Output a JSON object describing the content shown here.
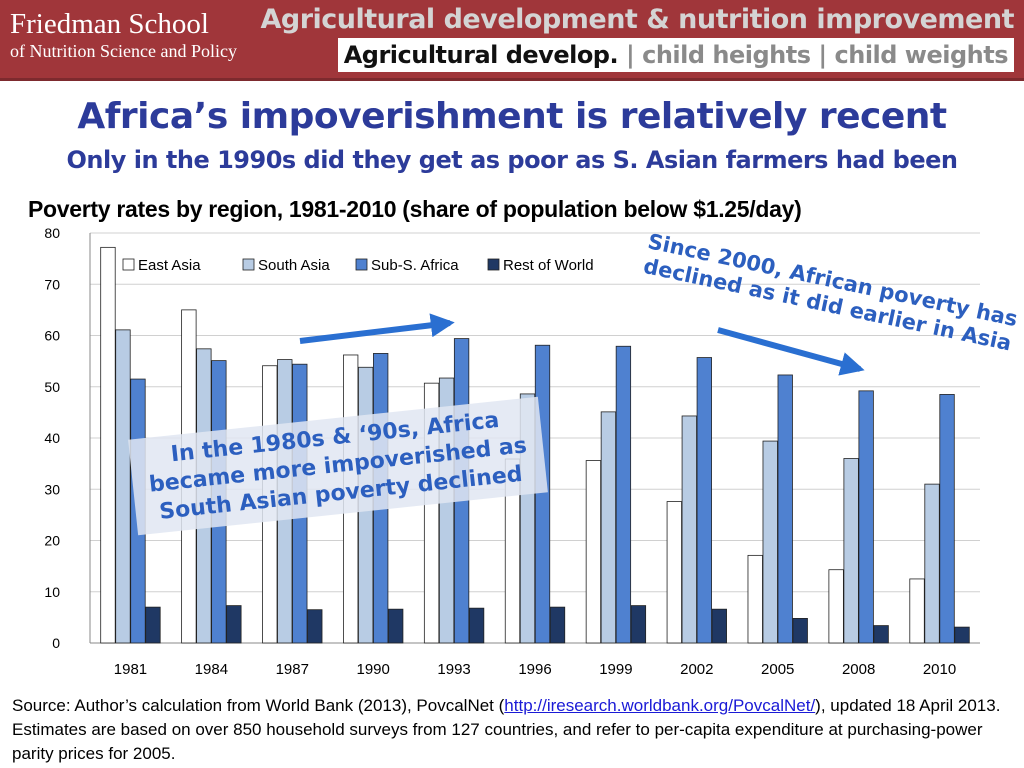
{
  "header": {
    "logo_line1": "Friedman School",
    "logo_line2": "of Nutrition Science and Policy",
    "section_title": "Agricultural development & nutrition improvement",
    "breadcrumb_active": "Agricultural develop.",
    "breadcrumb_sep": "|",
    "breadcrumb_items": [
      "child heights",
      "child weights"
    ]
  },
  "slide": {
    "title": "Africa’s impoverishment  is relatively recent",
    "subtitle": "Only in the 1990s did they get as poor as S. Asian farmers had been"
  },
  "annotations": {
    "left": "In the 1980s & ‘90s, Africa became more impoverished as South Asian poverty declined",
    "right": "Since 2000, African poverty has declined as it did earlier in Asia"
  },
  "source": {
    "prefix": "Source:  Author’s calculation from World Bank (2013), PovcalNet  (",
    "link": "http://iresearch.worldbank.org/PovcalNet/",
    "suffix": "), updated 18 April 2013.  Estimates are based on over 850 household surveys from 127 countries, and refer to per-capita expenditure at purchasing-power parity prices for 2005."
  },
  "colors": {
    "header_bg": "#a0363a",
    "title": "#2c3b9a",
    "annotation": "#2c5fbf",
    "arrow": "#2a6fd1"
  },
  "chart_data": {
    "type": "bar",
    "title": "Poverty rates by region, 1981-2010 (share of population below $1.25/day)",
    "categories": [
      "1981",
      "1984",
      "1987",
      "1990",
      "1993",
      "1996",
      "1999",
      "2002",
      "2005",
      "2008",
      "2010"
    ],
    "series": [
      {
        "name": "East Asia",
        "color": "#ffffff",
        "values": [
          77.2,
          65.0,
          54.1,
          56.2,
          50.7,
          35.9,
          35.6,
          27.6,
          17.1,
          14.3,
          12.5
        ]
      },
      {
        "name": "South Asia",
        "color": "#b8cce4",
        "values": [
          61.1,
          57.4,
          55.3,
          53.8,
          51.7,
          48.6,
          45.1,
          44.3,
          39.4,
          36.0,
          31.0
        ]
      },
      {
        "name": "Sub-S. Africa",
        "color": "#4f81d0",
        "values": [
          51.5,
          55.1,
          54.4,
          56.5,
          59.4,
          58.1,
          57.9,
          55.7,
          52.3,
          49.2,
          48.5
        ]
      },
      {
        "name": "Rest of World",
        "color": "#1f3864",
        "values": [
          7.0,
          7.3,
          6.5,
          6.6,
          6.8,
          7.0,
          7.3,
          6.6,
          4.8,
          3.4,
          3.1
        ]
      }
    ],
    "ylim": [
      0,
      80
    ],
    "yticks": [
      0,
      10,
      20,
      30,
      40,
      50,
      60,
      70,
      80
    ],
    "grid": true,
    "legend_position": "top"
  }
}
